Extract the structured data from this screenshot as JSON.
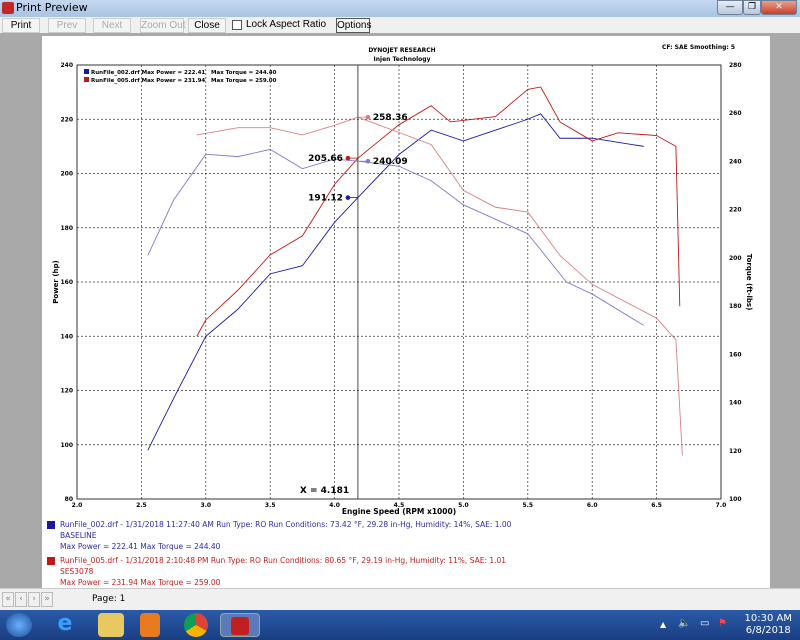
{
  "window": {
    "title": "Print Preview",
    "minimize": "—",
    "restore": "❐",
    "close": "✕"
  },
  "toolbar": {
    "print": "Print",
    "prev": "Prev",
    "next": "Next",
    "zoom_out": "Zoom Out",
    "close": "Close",
    "lock_aspect": "Lock Aspect Ratio",
    "lock_aspect_checked": false,
    "options": "Options"
  },
  "report": {
    "company": "DYNOJET RESEARCH",
    "subtitle": "Injen Technology",
    "settings": "CF: SAE  Smoothing: 5"
  },
  "colors": {
    "run1": "#1a1aa0",
    "run1_torque": "#7c7cc8",
    "run2": "#c01818",
    "run2_torque": "#d88080"
  },
  "chart_data": {
    "type": "line",
    "xlabel": "Engine Speed (RPM x1000)",
    "ylabel": "Power (hp)",
    "y2label": "Torque (ft-lbs)",
    "xlim": [
      2.0,
      7.0
    ],
    "ylim": [
      80,
      240
    ],
    "y2lim": [
      100,
      280
    ],
    "xticks": [
      "2.0",
      "2.5",
      "3.0",
      "3.5",
      "4.0",
      "4.5",
      "5.0",
      "5.5",
      "6.0",
      "6.5",
      "7.0"
    ],
    "yticks": [
      "80",
      "100",
      "120",
      "140",
      "160",
      "180",
      "200",
      "220",
      "240"
    ],
    "y2ticks": [
      "100",
      "120",
      "140",
      "160",
      "180",
      "200",
      "220",
      "240",
      "260",
      "280"
    ],
    "grid": true,
    "legend_top": [
      {
        "file": "RunFile_002.drf",
        "power": "Max Power = 222.41",
        "torque": "Max Torque = 244.40"
      },
      {
        "file": "RunFile_005.drf",
        "power": "Max Power = 231.94",
        "torque": "Max Torque = 259.00"
      }
    ],
    "cursor": {
      "x": 4.181,
      "label": "X = 4.181",
      "values": [
        "258.36",
        "205.66",
        "240.09",
        "191.12"
      ]
    },
    "series": [
      {
        "axis": "left",
        "points": [
          [
            2.55,
            98
          ],
          [
            2.76,
            118
          ],
          [
            3.0,
            140
          ],
          [
            3.25,
            150
          ],
          [
            3.5,
            163
          ],
          [
            3.75,
            166
          ],
          [
            4.0,
            182
          ],
          [
            4.181,
            191.12
          ],
          [
            4.5,
            207
          ],
          [
            4.75,
            216
          ],
          [
            5.0,
            212
          ],
          [
            5.25,
            216
          ],
          [
            5.5,
            220
          ],
          [
            5.6,
            222
          ],
          [
            5.75,
            213
          ],
          [
            5.9,
            213
          ],
          [
            6.0,
            213
          ],
          [
            6.4,
            210
          ]
        ]
      },
      {
        "axis": "left",
        "points": [
          [
            2.93,
            140
          ],
          [
            3.0,
            146
          ],
          [
            3.25,
            157
          ],
          [
            3.5,
            170
          ],
          [
            3.75,
            177
          ],
          [
            4.0,
            196
          ],
          [
            4.181,
            205.66
          ],
          [
            4.5,
            218
          ],
          [
            4.75,
            225
          ],
          [
            4.9,
            219
          ],
          [
            5.25,
            221
          ],
          [
            5.5,
            231
          ],
          [
            5.6,
            231.9
          ],
          [
            5.75,
            219
          ],
          [
            6.0,
            212
          ],
          [
            6.2,
            215
          ],
          [
            6.5,
            214
          ],
          [
            6.65,
            210
          ],
          [
            6.68,
            151
          ]
        ]
      },
      {
        "axis": "right",
        "points": [
          [
            2.55,
            201
          ],
          [
            2.75,
            224
          ],
          [
            3.0,
            243
          ],
          [
            3.25,
            242
          ],
          [
            3.5,
            245
          ],
          [
            3.75,
            237
          ],
          [
            4.0,
            241
          ],
          [
            4.181,
            240.09
          ],
          [
            4.5,
            238
          ],
          [
            4.75,
            232
          ],
          [
            5.0,
            222
          ],
          [
            5.5,
            210
          ],
          [
            5.8,
            190
          ],
          [
            6.0,
            185
          ],
          [
            6.4,
            172
          ]
        ]
      },
      {
        "axis": "right",
        "points": [
          [
            2.93,
            251
          ],
          [
            3.25,
            254
          ],
          [
            3.5,
            254
          ],
          [
            3.75,
            251
          ],
          [
            4.0,
            255
          ],
          [
            4.181,
            258.36
          ],
          [
            4.5,
            252
          ],
          [
            4.75,
            247
          ],
          [
            5.0,
            228
          ],
          [
            5.25,
            221
          ],
          [
            5.5,
            219
          ],
          [
            5.75,
            201
          ],
          [
            6.0,
            189
          ],
          [
            6.5,
            175
          ],
          [
            6.65,
            166
          ],
          [
            6.7,
            118
          ]
        ]
      }
    ]
  },
  "runs": [
    {
      "line": "RunFile_002.drf - 1/31/2018 11:27:40 AM  Run Type: RO  Run Conditions: 73.42 °F, 29.28 in-Hg,  Humidity:  14%, SAE: 1.00",
      "name": "BASELINE",
      "max": "Max Power = 222.41  Max Torque = 244.40"
    },
    {
      "line": "RunFile_005.drf - 1/31/2018 2:10:48 PM  Run Type: RO  Run Conditions: 80.65 °F, 29.19 in-Hg,  Humidity:  11%, SAE: 1.01",
      "name": "SES3078",
      "max": "Max Power = 231.94  Max Torque = 259.00"
    }
  ],
  "status": {
    "first": "«",
    "prev": "‹",
    "next": "›",
    "last": "»",
    "page": "Page: 1"
  },
  "taskbar": {
    "time": "10:30 AM",
    "date": "6/8/2018",
    "apps": [
      "start",
      "internet-explorer",
      "file-explorer",
      "media-player",
      "chrome",
      "dynojet"
    ]
  }
}
